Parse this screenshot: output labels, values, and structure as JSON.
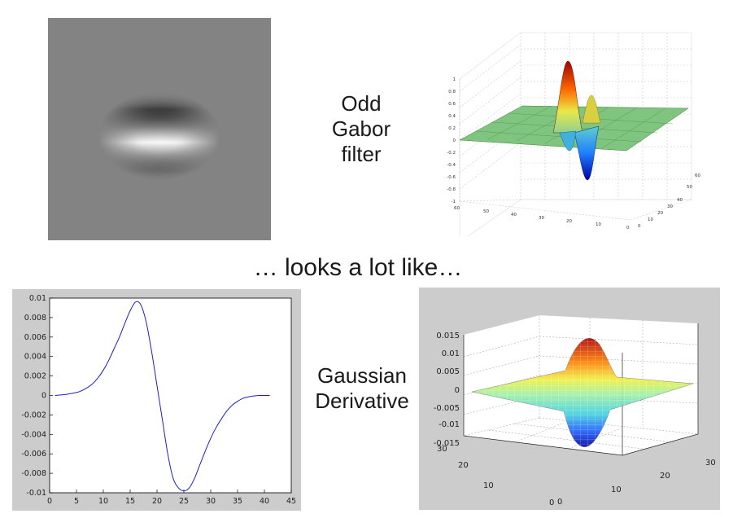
{
  "captions": {
    "odd_gabor": [
      "Odd",
      "Gabor",
      "filter"
    ],
    "gaussian_derivative": [
      "Gaussian",
      "Derivative"
    ],
    "middle": "… looks a lot like…"
  },
  "gabor_surface_axes": {
    "z_ticks": [
      "1",
      "0.8",
      "0.6",
      "0.4",
      "0.2",
      "0",
      "-0.2",
      "-0.4",
      "-0.6",
      "-0.8",
      "-1"
    ],
    "x_ticks": [
      "60",
      "50",
      "40",
      "30",
      "20",
      "10",
      "0"
    ],
    "y_ticks": [
      "0",
      "10",
      "20",
      "30",
      "40",
      "50",
      "60"
    ]
  },
  "chart_data": {
    "type": "line",
    "x": [
      1,
      2,
      3,
      4,
      5,
      6,
      7,
      8,
      9,
      10,
      11,
      12,
      13,
      14,
      15,
      16,
      17,
      18,
      19,
      20,
      21,
      22,
      23,
      24,
      25,
      26,
      27,
      28,
      29,
      30,
      31,
      32,
      33,
      34,
      35,
      36,
      37,
      38,
      39,
      40,
      41
    ],
    "y": [
      0,
      5e-05,
      0.0001,
      0.0002,
      0.0003,
      0.0005,
      0.0008,
      0.0012,
      0.0018,
      0.0026,
      0.0036,
      0.0048,
      0.006,
      0.0074,
      0.0087,
      0.0096,
      0.0093,
      0.0075,
      0.0045,
      0.001,
      -0.0025,
      -0.006,
      -0.0085,
      -0.0095,
      -0.0098,
      -0.0095,
      -0.0085,
      -0.0071,
      -0.0057,
      -0.0044,
      -0.0033,
      -0.0024,
      -0.0016,
      -0.001,
      -0.0006,
      -0.0003,
      -0.00015,
      -5e-05,
      0,
      0,
      0
    ],
    "xlim": [
      0,
      45
    ],
    "ylim": [
      -0.01,
      0.01
    ],
    "x_ticks": [
      "0",
      "5",
      "10",
      "15",
      "20",
      "25",
      "30",
      "35",
      "40",
      "45"
    ],
    "y_ticks": [
      "0.01",
      "0.008",
      "0.006",
      "0.004",
      "0.002",
      "0",
      "-0.002",
      "-0.004",
      "-0.006",
      "-0.008",
      "-0.01"
    ],
    "line_color": "#1f1fbf"
  },
  "gaussian_surface_axes": {
    "z_ticks": [
      "0.015",
      "0.01",
      "0.005",
      "0",
      "-0.005",
      "-0.01",
      "-0.015"
    ],
    "left_ticks": [
      "30",
      "20",
      "10",
      "0"
    ],
    "right_ticks": [
      "0",
      "10",
      "20",
      "30"
    ]
  }
}
